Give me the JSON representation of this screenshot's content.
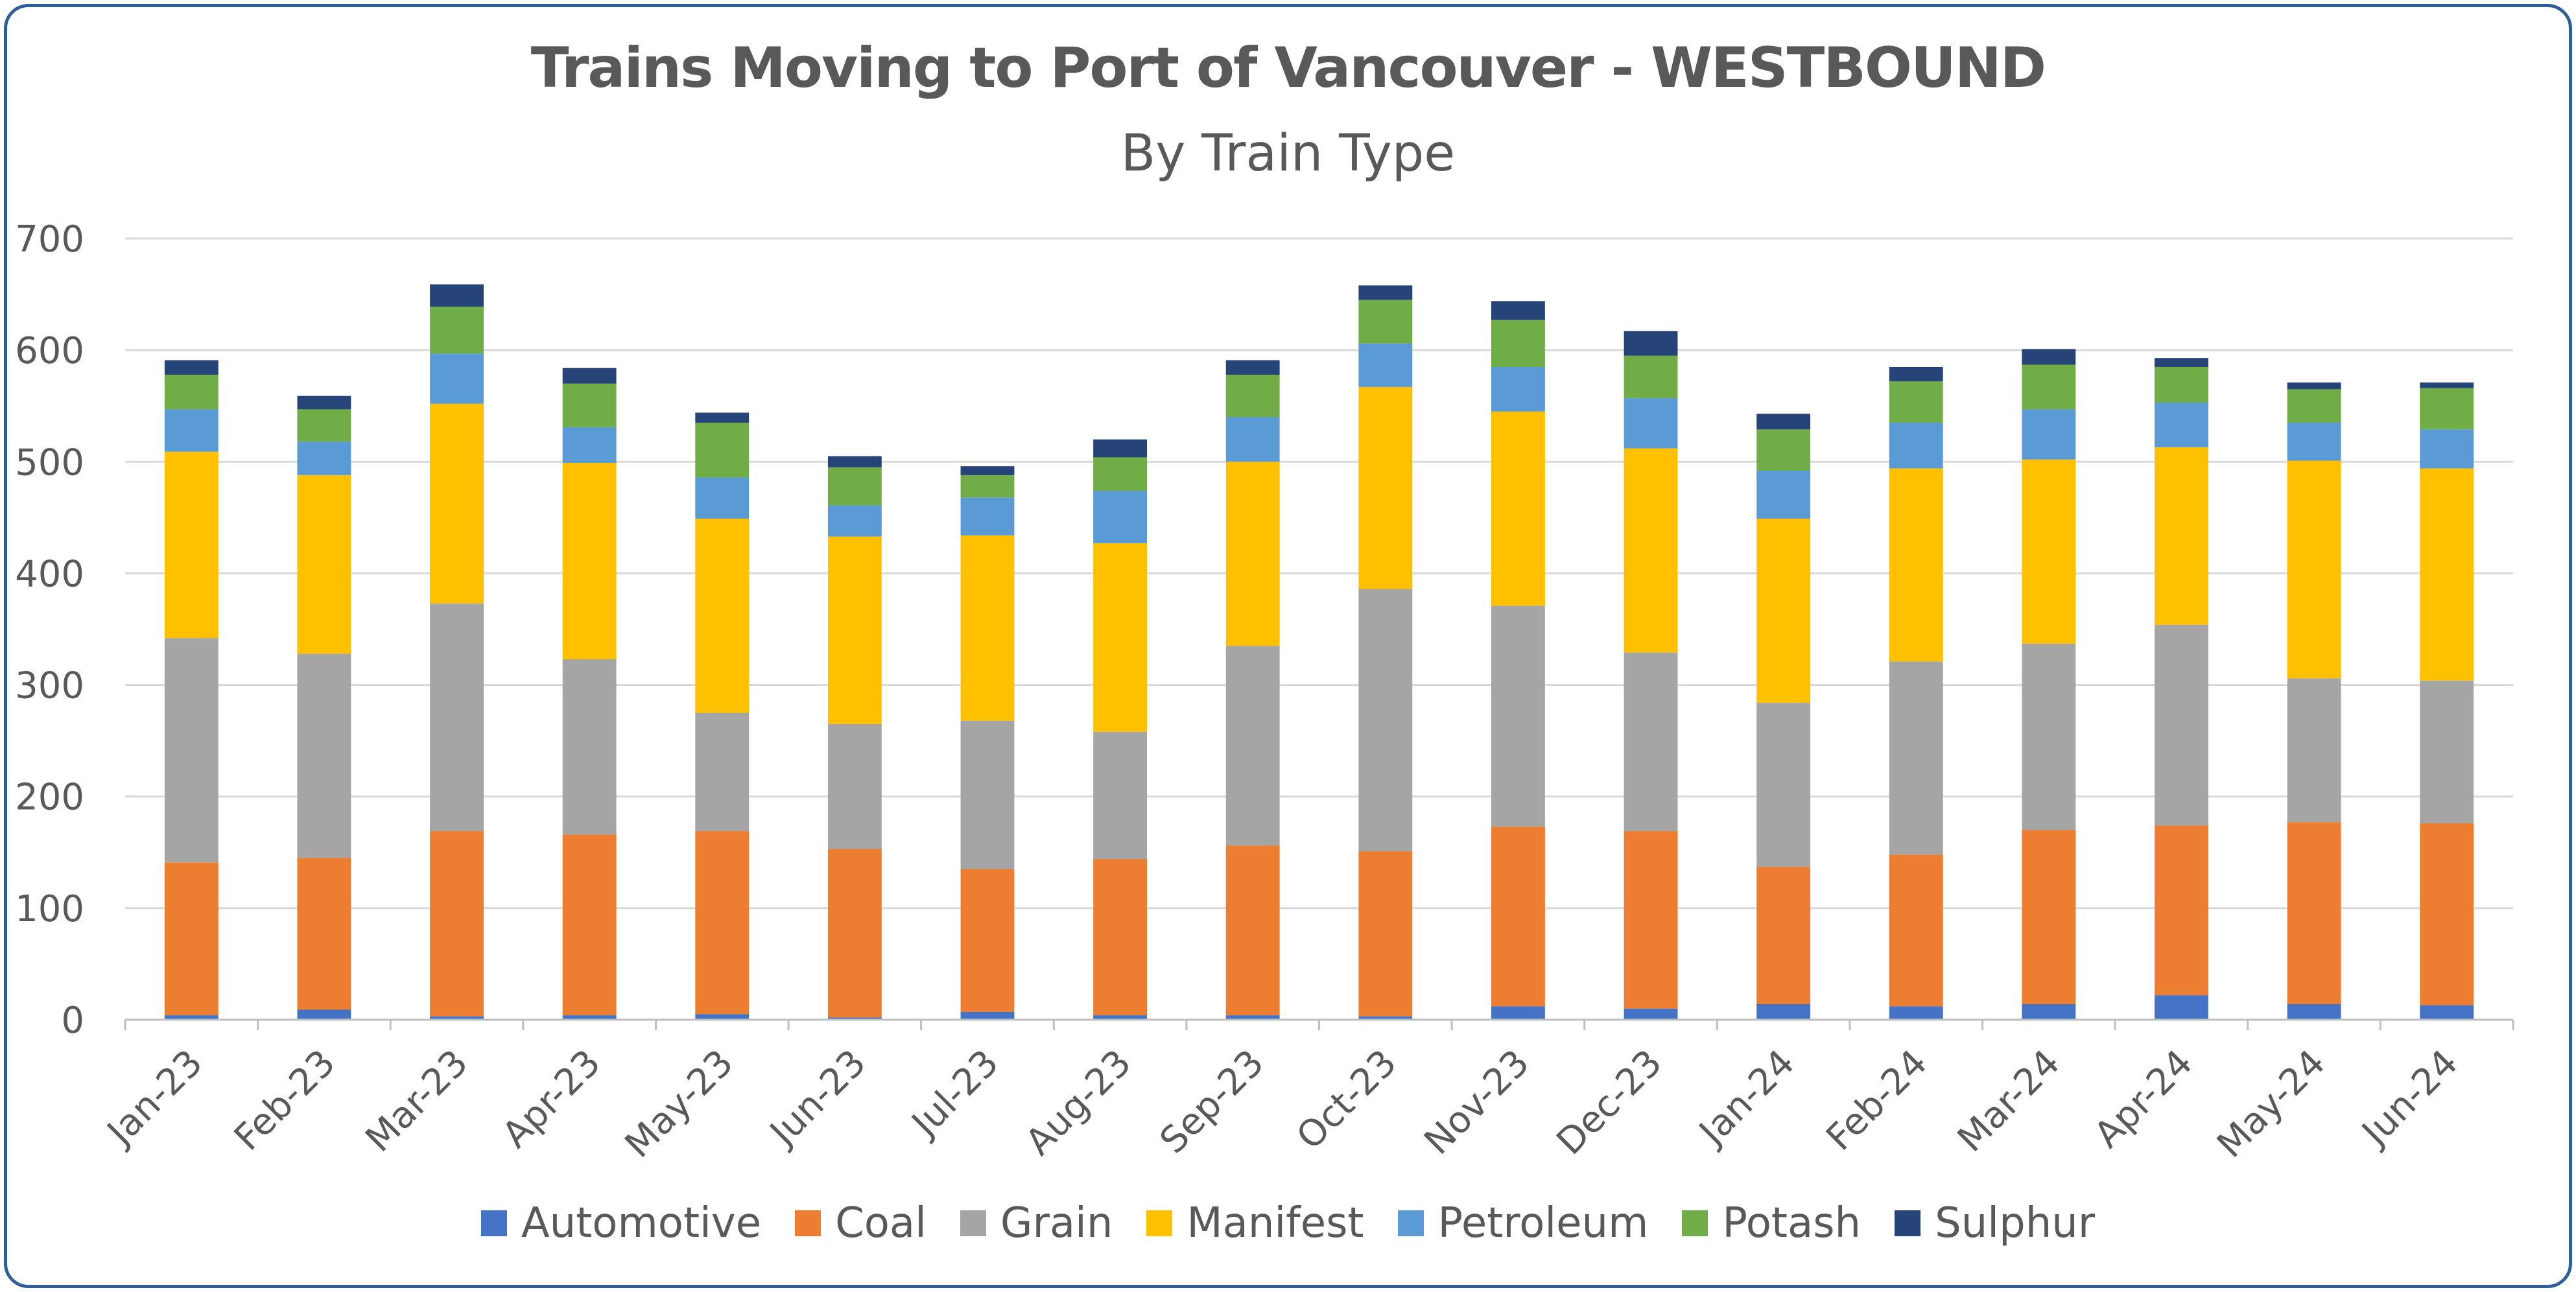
{
  "chart_data": {
    "type": "bar",
    "stacked": true,
    "title": "Trains Moving to Port of Vancouver - WESTBOUND",
    "subtitle": "By Train Type",
    "xlabel": "",
    "ylabel": "",
    "ylim": [
      0,
      700
    ],
    "yticks": [
      0,
      100,
      200,
      300,
      400,
      500,
      600,
      700
    ],
    "grid": true,
    "legend_position": "bottom",
    "categories": [
      "Jan-23",
      "Feb-23",
      "Mar-23",
      "Apr-23",
      "May-23",
      "Jun-23",
      "Jul-23",
      "Aug-23",
      "Sep-23",
      "Oct-23",
      "Nov-23",
      "Dec-23",
      "Jan-24",
      "Feb-24",
      "Mar-24",
      "Apr-24",
      "May-24",
      "Jun-24"
    ],
    "series": [
      {
        "name": "Automotive",
        "color": "#4472c4",
        "values": [
          4,
          9,
          3,
          4,
          5,
          2,
          7,
          4,
          4,
          3,
          12,
          10,
          14,
          12,
          14,
          22,
          14,
          13
        ]
      },
      {
        "name": "Coal",
        "color": "#ed7d31",
        "values": [
          137,
          136,
          166,
          162,
          164,
          151,
          128,
          140,
          152,
          148,
          161,
          159,
          123,
          136,
          156,
          152,
          163,
          163
        ]
      },
      {
        "name": "Grain",
        "color": "#a5a5a5",
        "values": [
          201,
          183,
          204,
          157,
          106,
          112,
          133,
          114,
          179,
          235,
          198,
          160,
          147,
          173,
          167,
          180,
          129,
          128
        ]
      },
      {
        "name": "Manifest",
        "color": "#ffc000",
        "values": [
          167,
          160,
          179,
          176,
          174,
          168,
          166,
          169,
          165,
          181,
          174,
          183,
          165,
          173,
          165,
          159,
          195,
          190
        ]
      },
      {
        "name": "Petroleum",
        "color": "#5b9bd5",
        "values": [
          38,
          30,
          45,
          32,
          37,
          28,
          34,
          47,
          40,
          39,
          40,
          45,
          43,
          41,
          45,
          40,
          34,
          35
        ]
      },
      {
        "name": "Potash",
        "color": "#70ad47",
        "values": [
          31,
          29,
          42,
          39,
          49,
          34,
          20,
          30,
          38,
          39,
          42,
          38,
          37,
          37,
          40,
          32,
          30,
          37
        ]
      },
      {
        "name": "Sulphur",
        "color": "#264478",
        "values": [
          13,
          12,
          20,
          14,
          9,
          10,
          8,
          16,
          13,
          13,
          17,
          22,
          14,
          13,
          14,
          8,
          6,
          5
        ]
      }
    ]
  }
}
